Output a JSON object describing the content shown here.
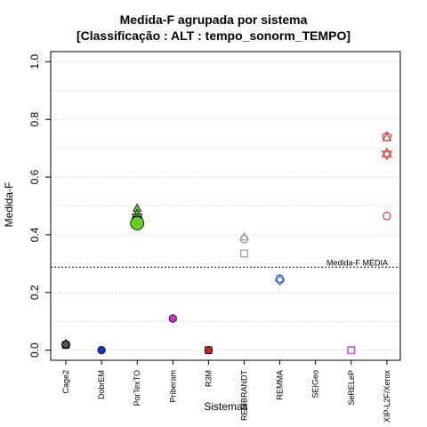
{
  "chart_data": {
    "type": "scatter",
    "title": "Medida-F agrupada por sistema",
    "subtitle": "[Classificação : ALT : tempo_sonorm_TEMPO]",
    "xlabel": "Sistemas",
    "ylabel": "Medida-F",
    "ylim": [
      0,
      1
    ],
    "yticks": [
      "0.0",
      "0.2",
      "0.4",
      "0.6",
      "0.8",
      "1.0"
    ],
    "grid": true,
    "categories": [
      "Cage2",
      "DobrEM",
      "PorTexTO",
      "Priberam",
      "R3M",
      "REMBRANDT",
      "REMMA",
      "SEIGeo",
      "SeRELeP",
      "XIP-L2F/Xerox"
    ],
    "reference_line": {
      "label": "Medida-F MÉDIA",
      "value": 0.288
    },
    "series": [
      {
        "category": "Cage2",
        "color": "#555555",
        "points": [
          {
            "y": 0.02,
            "shape": "circle",
            "filled": true
          },
          {
            "y": 0.022,
            "shape": "triangle",
            "filled": true
          },
          {
            "y": 0.018,
            "shape": "square",
            "filled": true
          },
          {
            "y": 0.02,
            "shape": "diamond",
            "filled": true
          }
        ]
      },
      {
        "category": "DobrEM",
        "color": "#1a33cc",
        "points": [
          {
            "y": 0.0,
            "shape": "circle",
            "filled": true
          }
        ]
      },
      {
        "category": "PorTexTO",
        "color": "#66cc22",
        "points": [
          {
            "y": 0.49,
            "shape": "triangle",
            "filled": true
          },
          {
            "y": 0.465,
            "shape": "star",
            "filled": true
          },
          {
            "y": 0.455,
            "shape": "circle",
            "filled": true
          },
          {
            "y": 0.44,
            "shape": "circle-large",
            "filled": true
          }
        ]
      },
      {
        "category": "Priberam",
        "color": "#cc33cc",
        "points": [
          {
            "y": 0.11,
            "shape": "circle",
            "filled": true
          }
        ]
      },
      {
        "category": "R3M",
        "color": "#cc2222",
        "points": [
          {
            "y": 0.0,
            "shape": "circle",
            "filled": true
          },
          {
            "y": 0.0,
            "shape": "square",
            "filled": true
          }
        ]
      },
      {
        "category": "REMBRANDT",
        "color": "#999999",
        "points": [
          {
            "y": 0.39,
            "shape": "triangle",
            "filled": false
          },
          {
            "y": 0.385,
            "shape": "circle",
            "filled": false
          },
          {
            "y": 0.335,
            "shape": "square",
            "filled": false
          }
        ]
      },
      {
        "category": "REMMA",
        "color": "#3355dd",
        "points": [
          {
            "y": 0.248,
            "shape": "circle",
            "filled": false
          },
          {
            "y": 0.242,
            "shape": "diamond",
            "filled": false
          }
        ]
      },
      {
        "category": "SEIGeo",
        "color": "#000000",
        "points": []
      },
      {
        "category": "SeRELeP",
        "color": "#dd44dd",
        "points": [
          {
            "y": 0.0,
            "shape": "square",
            "filled": false
          },
          {
            "y": 0.0,
            "shape": "circle",
            "filled": false
          }
        ]
      },
      {
        "category": "XIP-L2F/Xerox",
        "color": "#e03333",
        "points": [
          {
            "y": 0.74,
            "shape": "pentagon",
            "filled": false
          },
          {
            "y": 0.735,
            "shape": "triangle",
            "filled": false
          },
          {
            "y": 0.68,
            "shape": "star-of-david",
            "filled": false
          },
          {
            "y": 0.465,
            "shape": "circle",
            "filled": false
          }
        ]
      }
    ]
  }
}
